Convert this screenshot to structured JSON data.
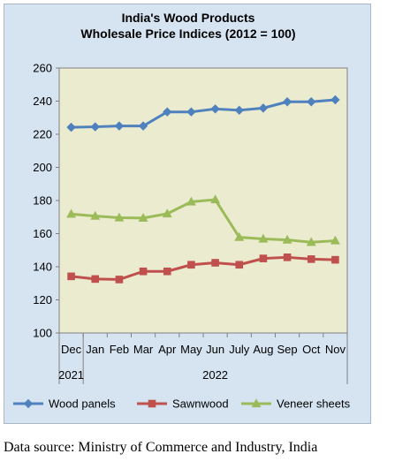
{
  "chart_data": {
    "type": "line",
    "title_line1": "India's Wood Products",
    "title_line2": "Wholesale Price Indices (2012 = 100)",
    "categories": [
      "Dec",
      "Jan",
      "Feb",
      "Mar",
      "Apr",
      "May",
      "Jun",
      "July",
      "Aug",
      "Sep",
      "Oct",
      "Nov"
    ],
    "year_labels": [
      "2021",
      "2022"
    ],
    "ylim": [
      100,
      260
    ],
    "yticks": [
      100,
      120,
      140,
      160,
      180,
      200,
      220,
      240,
      260
    ],
    "grid": false,
    "legend_position": "bottom",
    "plot_background": "#ebebd0",
    "series": [
      {
        "name": "Wood panels",
        "color": "#4f81bd",
        "marker": "diamond",
        "values": [
          224.2,
          224.5,
          225.0,
          225.0,
          233.5,
          233.5,
          235.3,
          234.5,
          235.8,
          239.6,
          239.6,
          240.8
        ]
      },
      {
        "name": "Sawnwood",
        "color": "#c0504d",
        "marker": "square",
        "values": [
          134.2,
          132.6,
          132.3,
          137.2,
          137.2,
          141.2,
          142.4,
          141.2,
          145.0,
          145.7,
          144.6,
          144.2
        ]
      },
      {
        "name": "Veneer sheets",
        "color": "#9bbb59",
        "marker": "triangle",
        "values": [
          171.8,
          170.6,
          169.6,
          169.4,
          172.0,
          179.2,
          180.5,
          157.8,
          156.8,
          156.2,
          154.8,
          155.7
        ]
      }
    ]
  },
  "source_text": "Data source: Ministry of Commerce and Industry, India"
}
